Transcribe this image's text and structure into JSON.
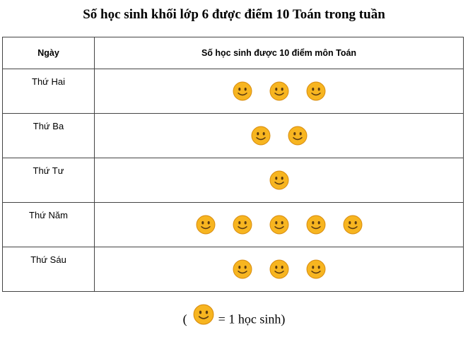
{
  "title": "Số học sinh khối lớp 6 được điểm 10 Toán trong tuần",
  "icon": "smiley-face-icon",
  "colors": {
    "face": "#f7b520",
    "face_edge": "#d98e10",
    "features": "#5a3a10"
  },
  "chart_data": {
    "type": "table",
    "title": "Số học sinh khối lớp 6 được điểm 10 Toán trong tuần",
    "headers": [
      "Ngày",
      "Số học sinh được 10 điểm môn Toán"
    ],
    "categories": [
      "Thứ Hai",
      "Thứ Ba",
      "Thứ Tư",
      "Thứ Năm",
      "Thứ Sáu"
    ],
    "values": [
      3,
      2,
      1,
      5,
      3
    ]
  },
  "legend": {
    "open": "(",
    "text": "= 1 học sinh)"
  }
}
